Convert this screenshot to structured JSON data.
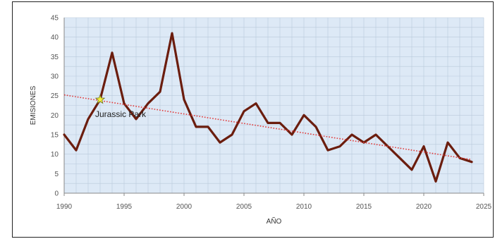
{
  "chart_data": {
    "type": "line",
    "title": "",
    "xlabel": "AÑO",
    "ylabel": "EMISIONES",
    "xlim": [
      1990,
      2025
    ],
    "ylim": [
      0,
      45
    ],
    "x_ticks": [
      1990,
      1995,
      2000,
      2005,
      2010,
      2015,
      2020,
      2025
    ],
    "y_ticks": [
      0,
      5,
      10,
      15,
      20,
      25,
      30,
      35,
      40,
      45
    ],
    "grid": true,
    "legend": "none",
    "series": [
      {
        "style": "solid",
        "color": "#6b1d0e",
        "x": [
          1990,
          1991,
          1992,
          1993,
          1994,
          1995,
          1996,
          1997,
          1998,
          1999,
          2000,
          2001,
          2002,
          2003,
          2004,
          2005,
          2006,
          2007,
          2008,
          2009,
          2010,
          2011,
          2012,
          2013,
          2014,
          2015,
          2016,
          2017,
          2018,
          2019,
          2020,
          2021,
          2022,
          2023,
          2024
        ],
        "values": [
          15,
          11,
          19,
          24,
          36,
          23,
          19,
          23,
          26,
          41,
          24,
          17,
          17,
          13,
          15,
          21,
          23,
          18,
          18,
          15,
          20,
          17,
          11,
          12,
          15,
          13,
          15,
          12,
          9,
          6,
          12,
          3,
          13,
          9,
          8
        ]
      },
      {
        "style": "trendline-dotted",
        "color": "#e03a3a",
        "x": [
          1990,
          2024
        ],
        "values": [
          25.2,
          8.6
        ]
      }
    ],
    "annotations": [
      {
        "text": "Jurassic Park",
        "x": 1993,
        "y": 24,
        "marker": "star",
        "marker_color": "#f3ef3b"
      }
    ]
  }
}
